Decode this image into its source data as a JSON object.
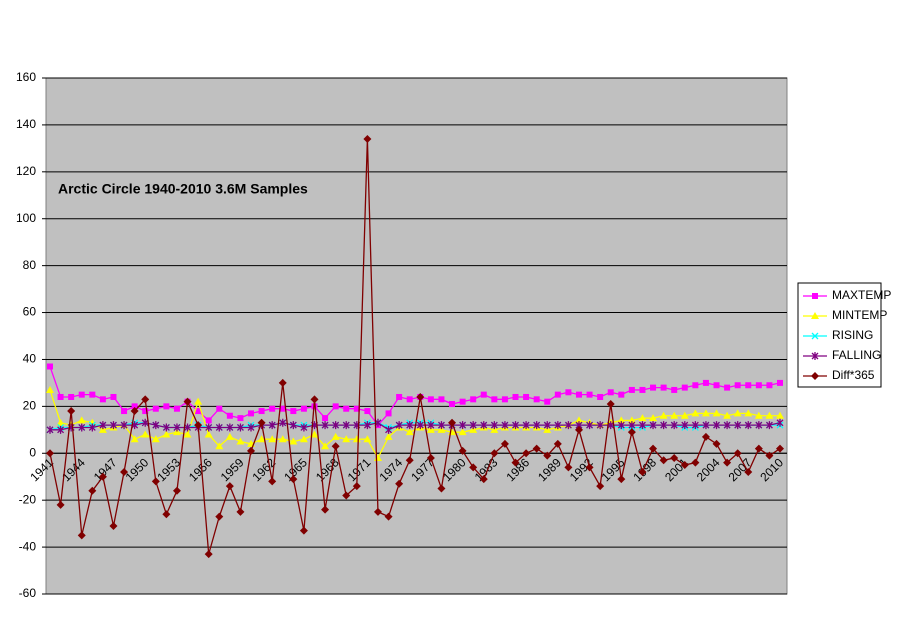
{
  "chart_data": {
    "type": "line",
    "annotation": "Arctic Circle 1940-2010 3.6M Samples",
    "categories": [
      "1941",
      null,
      null,
      "1944",
      null,
      null,
      "1947",
      null,
      null,
      "1950",
      null,
      null,
      "1953",
      null,
      null,
      "1956",
      null,
      null,
      "1959",
      null,
      null,
      "1962",
      null,
      null,
      "1965",
      null,
      null,
      "1968",
      null,
      null,
      "1971",
      null,
      null,
      "1974",
      null,
      null,
      "1977",
      null,
      null,
      "1980",
      null,
      null,
      "1983",
      null,
      null,
      "1986",
      null,
      null,
      "1989",
      null,
      null,
      "1992",
      null,
      null,
      "1995",
      null,
      null,
      "1998",
      null,
      null,
      "2001",
      null,
      null,
      "2004",
      null,
      null,
      "2007",
      null,
      null,
      "2010"
    ],
    "ylim": [
      -60,
      160
    ],
    "yticks": [
      -60,
      -40,
      -20,
      0,
      20,
      40,
      60,
      80,
      100,
      120,
      140,
      160
    ],
    "grid": true,
    "legend": "right",
    "series": [
      {
        "name": "MAXTEMP",
        "color": "#ff00ff",
        "marker": "square",
        "values": [
          37,
          24,
          24,
          25,
          25,
          23,
          24,
          18,
          20,
          18,
          19,
          20,
          19,
          22,
          18,
          14,
          19,
          16,
          15,
          17,
          18,
          19,
          19,
          18,
          19,
          20,
          15,
          20,
          19,
          19,
          18,
          12,
          17,
          24,
          23,
          24,
          23,
          23,
          21,
          22,
          23,
          25,
          23,
          23,
          24,
          24,
          23,
          22,
          25,
          26,
          25,
          25,
          24,
          26,
          25,
          27,
          27,
          28,
          28,
          27,
          28,
          29,
          30,
          29,
          28,
          29,
          29,
          29,
          29,
          30
        ]
      },
      {
        "name": "MINTEMP",
        "color": "#ffff00",
        "marker": "triangle",
        "values": [
          27,
          13,
          12,
          14,
          13,
          10,
          11,
          12,
          6,
          8,
          6,
          8,
          9,
          8,
          22,
          8,
          3,
          7,
          5,
          4,
          6,
          6,
          6,
          5,
          6,
          8,
          3,
          7,
          6,
          6,
          6,
          -2,
          7,
          11,
          9,
          11,
          10,
          10,
          9,
          9,
          10,
          11,
          10,
          11,
          11,
          11,
          11,
          10,
          11,
          12,
          14,
          13,
          12,
          13,
          14,
          14,
          15,
          15,
          16,
          16,
          16,
          17,
          17,
          17,
          16,
          17,
          17,
          16,
          16,
          16
        ]
      },
      {
        "name": "RISING",
        "color": "#00ffff",
        "marker": "x",
        "values": [
          10,
          11,
          11,
          11,
          12,
          12,
          12,
          12,
          13,
          13,
          12,
          11,
          11,
          11,
          12,
          11,
          11,
          11,
          11,
          12,
          12,
          12,
          13,
          12,
          12,
          12,
          12,
          12,
          12,
          12,
          13,
          13,
          11,
          12,
          13,
          13,
          13,
          12,
          12,
          12,
          12,
          12,
          12,
          12,
          12,
          12,
          12,
          12,
          12,
          12,
          12,
          12,
          12,
          12,
          11,
          11,
          11,
          12,
          12,
          12,
          11,
          11,
          12,
          12,
          12,
          12,
          12,
          12,
          12,
          12
        ]
      },
      {
        "name": "FALLING",
        "color": "#800080",
        "marker": "star",
        "values": [
          10,
          10,
          11,
          11,
          11,
          12,
          12,
          12,
          12,
          13,
          12,
          11,
          11,
          11,
          11,
          11,
          11,
          11,
          11,
          11,
          12,
          12,
          13,
          12,
          11,
          12,
          12,
          12,
          12,
          12,
          12,
          13,
          10,
          12,
          12,
          12,
          12,
          12,
          12,
          12,
          12,
          12,
          12,
          12,
          12,
          12,
          12,
          12,
          12,
          12,
          12,
          12,
          12,
          12,
          12,
          12,
          12,
          12,
          12,
          12,
          12,
          12,
          12,
          12,
          12,
          12,
          12,
          12,
          12,
          13
        ]
      },
      {
        "name": "Diff*365",
        "color": "#800000",
        "marker": "diamond",
        "values": [
          0,
          -22,
          18,
          -35,
          -16,
          -10,
          -31,
          -8,
          18,
          23,
          -12,
          -26,
          -16,
          22,
          12,
          -43,
          -27,
          -14,
          -25,
          1,
          13,
          -12,
          30,
          -11,
          -33,
          23,
          -24,
          3,
          -18,
          -14,
          134,
          -25,
          -27,
          -13,
          -3,
          24,
          -2,
          -15,
          13,
          1,
          -6,
          -11,
          0,
          4,
          -4,
          0,
          2,
          -1,
          4,
          -6,
          10,
          -6,
          -14,
          21,
          -11,
          9,
          -8,
          2,
          -3,
          -2,
          -5,
          -4,
          7,
          4,
          -4,
          0,
          -8,
          2,
          -1,
          2
        ]
      }
    ]
  }
}
